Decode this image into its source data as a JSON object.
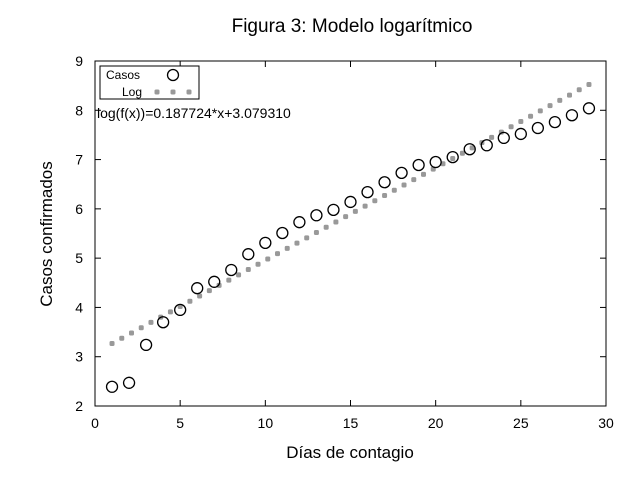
{
  "chart_data": {
    "type": "scatter",
    "title": "Figura 3: Modelo logarítmico",
    "xlabel": "Días de contagio",
    "ylabel": "Casos confirmados",
    "xlim": [
      0,
      30
    ],
    "ylim": [
      2,
      9
    ],
    "xticks": [
      0,
      5,
      10,
      15,
      20,
      25,
      30
    ],
    "yticks": [
      2,
      3,
      4,
      5,
      6,
      7,
      8,
      9
    ],
    "grid": false,
    "legend_position": "top-left",
    "annotation": "log(f(x))=0.187724*x+3.079310",
    "series": [
      {
        "name": "Casos",
        "marker": "open-circle",
        "color": "#000000",
        "x": [
          1,
          2,
          3,
          4,
          5,
          6,
          7,
          8,
          9,
          10,
          11,
          12,
          13,
          14,
          15,
          16,
          17,
          18,
          19,
          20,
          21,
          22,
          23,
          24,
          25,
          26,
          27,
          28,
          29
        ],
        "y": [
          2.39,
          2.47,
          3.24,
          3.7,
          3.95,
          4.39,
          4.52,
          4.76,
          5.08,
          5.31,
          5.51,
          5.73,
          5.87,
          5.98,
          6.14,
          6.34,
          6.54,
          6.73,
          6.89,
          6.95,
          7.05,
          7.21,
          7.29,
          7.44,
          7.52,
          7.64,
          7.76,
          7.9,
          8.04
        ]
      },
      {
        "name": "Log",
        "marker": "dots",
        "color": "#999999",
        "function": {
          "slope": 0.187724,
          "intercept": 3.07931,
          "domain": [
            1,
            29
          ],
          "samples": 50
        }
      }
    ]
  }
}
